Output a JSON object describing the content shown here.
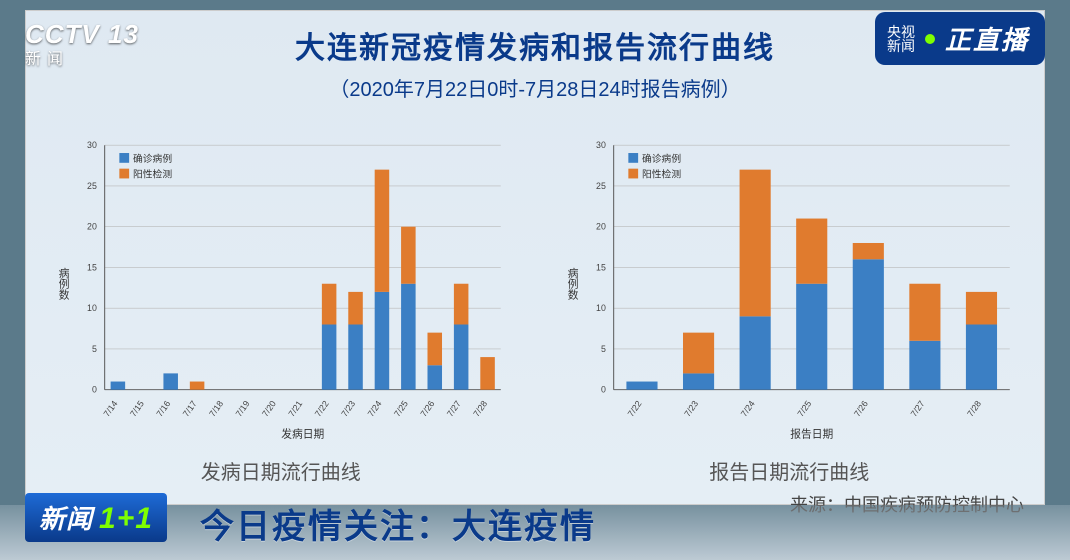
{
  "header": {
    "title": "大连新冠疫情发病和报告流行曲线",
    "subtitle": "（2020年7月22日0时-7月28日24时报告病例）",
    "source": "来源：中国疾病预防控制中心"
  },
  "chart_common": {
    "ylabel": "病例数",
    "ylim": [
      0,
      30
    ],
    "ytick_step": 5,
    "legend": {
      "series1": "确诊病例",
      "series2": "阳性检测",
      "color1": "#3b7fc4",
      "color2": "#e07b2e"
    },
    "label_fontsize": 11,
    "tick_fontsize": 9,
    "grid_color": "#b9b9b9",
    "background": "transparent",
    "bar_width": 0.55
  },
  "chart_left": {
    "type": "stacked_bar",
    "xlabel": "发病日期",
    "caption": "发病日期流行曲线",
    "categories": [
      "7/14",
      "7/15",
      "7/16",
      "7/17",
      "7/18",
      "7/19",
      "7/20",
      "7/21",
      "7/22",
      "7/23",
      "7/24",
      "7/25",
      "7/26",
      "7/27",
      "7/28"
    ],
    "confirmed": [
      1,
      0,
      2,
      0,
      0,
      0,
      0,
      0,
      8,
      8,
      12,
      13,
      3,
      8,
      0
    ],
    "positive": [
      0,
      0,
      0,
      1,
      0,
      0,
      0,
      0,
      5,
      4,
      15,
      7,
      4,
      5,
      4
    ]
  },
  "chart_right": {
    "type": "stacked_bar",
    "xlabel": "报告日期",
    "caption": "报告日期流行曲线",
    "categories": [
      "7/22",
      "7/23",
      "7/24",
      "7/25",
      "7/26",
      "7/27",
      "7/28"
    ],
    "confirmed": [
      1,
      2,
      9,
      13,
      16,
      6,
      8
    ],
    "positive": [
      0,
      5,
      18,
      8,
      2,
      7,
      4
    ]
  },
  "overlays": {
    "channel_logo_top": "CCTV",
    "channel_logo_num": "13",
    "channel_logo_cn": "新闻",
    "live_label_a": "央视",
    "live_label_b": "新闻",
    "live_text": "正直播",
    "lower_badge": "新闻",
    "lower_badge_plus": "1+1",
    "lower_text": "今日疫情关注：大连疫情"
  }
}
